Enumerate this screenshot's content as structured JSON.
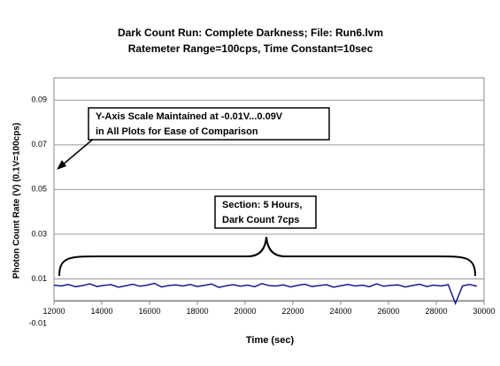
{
  "chart_data": {
    "type": "line",
    "title": "Dark Count Run: Complete Darkness; File: Run6.lvm",
    "subtitle": "Ratemeter Range=100cps, Time Constant=10sec",
    "x_label": "Time (sec)",
    "y_label": "Photon Count Rate (V) (0.1V=100cps)",
    "xlim": [
      12000,
      30000
    ],
    "xticks": [
      12000,
      14000,
      16000,
      18000,
      20000,
      22000,
      24000,
      26000,
      28000,
      30000
    ],
    "ylim": [
      -0.01,
      0.1
    ],
    "yticks": [
      -0.01,
      0.01,
      0.03,
      0.05,
      0.07,
      0.09
    ],
    "grid": true,
    "series": [
      {
        "color": "#1a1a8c",
        "x": [
          12000,
          12300,
          12600,
          12900,
          13200,
          13500,
          13800,
          14100,
          14400,
          14700,
          15000,
          15300,
          15600,
          15900,
          16200,
          16500,
          16800,
          17100,
          17400,
          17700,
          18000,
          18300,
          18600,
          18900,
          19200,
          19500,
          19800,
          20100,
          20400,
          20700,
          21000,
          21300,
          21600,
          21900,
          22200,
          22500,
          22800,
          23100,
          23400,
          23700,
          24000,
          24300,
          24600,
          24900,
          25200,
          25500,
          25800,
          26100,
          26400,
          26700,
          27000,
          27300,
          27600,
          27900,
          28200,
          28500,
          28800,
          29100,
          29400,
          29700
        ],
        "values": [
          0.0072,
          0.0068,
          0.0075,
          0.0065,
          0.007,
          0.0078,
          0.0066,
          0.0071,
          0.0074,
          0.0063,
          0.0069,
          0.0076,
          0.0067,
          0.0072,
          0.008,
          0.0064,
          0.007,
          0.0073,
          0.0068,
          0.0075,
          0.0066,
          0.0071,
          0.0077,
          0.0062,
          0.0069,
          0.0074,
          0.0067,
          0.0072,
          0.0065,
          0.0079,
          0.007,
          0.0068,
          0.0073,
          0.0064,
          0.0071,
          0.0076,
          0.0066,
          0.007,
          0.0074,
          0.0063,
          0.0069,
          0.0075,
          0.0068,
          0.0072,
          0.0065,
          0.0078,
          0.0067,
          0.0071,
          0.0073,
          0.0064,
          0.007,
          0.0076,
          0.0066,
          0.0072,
          0.0068,
          0.0074,
          -0.001,
          0.0069,
          0.0075,
          0.0067
        ]
      }
    ],
    "annotations": [
      {
        "lines": [
          "Y-Axis Scale Maintained at -0.01V...0.09V",
          "in All Plots for Ease of Comparison"
        ]
      },
      {
        "lines": [
          "Section: 5 Hours,",
          "Dark Count 7cps"
        ]
      }
    ]
  }
}
